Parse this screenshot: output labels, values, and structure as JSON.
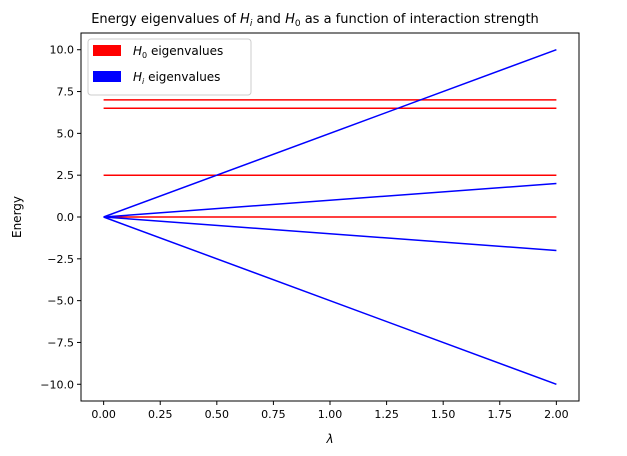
{
  "chart_data": {
    "type": "line",
    "title": {
      "prefix": "Energy eigenvalues of ",
      "a_main": "H",
      "a_sub": "i",
      "middle": " and ",
      "b_main": "H",
      "b_sub": "0",
      "suffix": " as a function of interaction strength"
    },
    "xlabel": "λ",
    "ylabel": "Energy",
    "xlim": [
      -0.1,
      2.1
    ],
    "ylim": [
      -11.0,
      11.0
    ],
    "x_ticks": [
      0.0,
      0.25,
      0.5,
      0.75,
      1.0,
      1.25,
      1.5,
      1.75,
      2.0
    ],
    "x_tick_labels": [
      "0.00",
      "0.25",
      "0.50",
      "0.75",
      "1.00",
      "1.25",
      "1.50",
      "1.75",
      "2.00"
    ],
    "y_ticks": [
      10.0,
      7.5,
      5.0,
      2.5,
      0.0,
      -2.5,
      -5.0,
      -7.5,
      -10.0
    ],
    "y_tick_labels": [
      "10.0",
      "7.5",
      "5.0",
      "2.5",
      "0.0",
      "−2.5",
      "−5.0",
      "−7.5",
      "−10.0"
    ],
    "grid": false,
    "legend": {
      "placement": "top-left",
      "entries": [
        {
          "main": "H",
          "sub": "0",
          "text": " eigenvalues",
          "color": "#ff0000"
        },
        {
          "main": "H",
          "sub": "i",
          "text": " eigenvalues",
          "color": "#0000ff"
        }
      ]
    },
    "series": [
      {
        "group": "H0",
        "color": "#ff0000",
        "x": [
          0,
          2
        ],
        "y": [
          7.0,
          7.0
        ]
      },
      {
        "group": "H0",
        "color": "#ff0000",
        "x": [
          0,
          2
        ],
        "y": [
          6.5,
          6.5
        ]
      },
      {
        "group": "H0",
        "color": "#ff0000",
        "x": [
          0,
          2
        ],
        "y": [
          2.5,
          2.5
        ]
      },
      {
        "group": "H0",
        "color": "#ff0000",
        "x": [
          0,
          2
        ],
        "y": [
          0.0,
          0.0
        ]
      },
      {
        "group": "Hi",
        "color": "#0000ff",
        "x": [
          0,
          2
        ],
        "y": [
          0.0,
          10.0
        ]
      },
      {
        "group": "Hi",
        "color": "#0000ff",
        "x": [
          0,
          2
        ],
        "y": [
          0.0,
          2.0
        ]
      },
      {
        "group": "Hi",
        "color": "#0000ff",
        "x": [
          0,
          2
        ],
        "y": [
          0.0,
          -2.0
        ]
      },
      {
        "group": "Hi",
        "color": "#0000ff",
        "x": [
          0,
          2
        ],
        "y": [
          0.0,
          -10.0
        ]
      }
    ]
  }
}
